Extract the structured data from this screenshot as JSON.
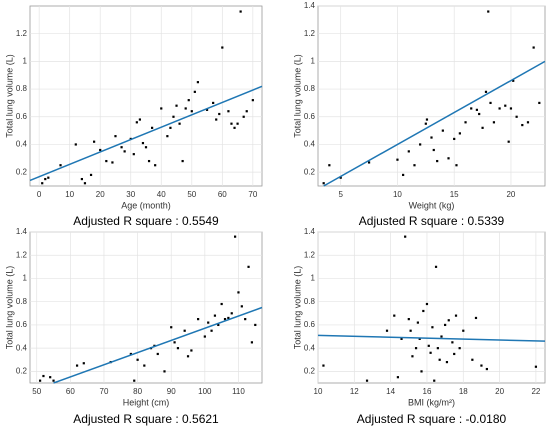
{
  "chart_data": [
    {
      "type": "scatter",
      "x_label": "Age (month)",
      "y_label": "Total lung volume (L)",
      "caption": "Adjusted R square : 0.5549",
      "color": "#000000",
      "x": [
        1,
        2,
        3,
        7,
        12,
        14,
        15,
        17,
        18,
        20,
        22,
        24,
        25,
        27,
        28,
        30,
        31,
        32,
        33,
        34,
        35,
        36,
        37,
        38,
        40,
        42,
        43,
        44,
        45,
        46,
        47,
        48,
        49,
        50,
        51,
        52,
        55,
        57,
        58,
        59,
        60,
        62,
        63,
        64,
        65,
        66,
        67,
        68,
        70
      ],
      "y": [
        0.12,
        0.15,
        0.16,
        0.25,
        0.4,
        0.15,
        0.12,
        0.18,
        0.42,
        0.36,
        0.28,
        0.27,
        0.46,
        0.38,
        0.35,
        0.44,
        0.33,
        0.56,
        0.58,
        0.41,
        0.38,
        0.28,
        0.52,
        0.25,
        0.66,
        0.46,
        0.52,
        0.6,
        0.68,
        0.55,
        0.28,
        0.66,
        0.72,
        0.64,
        0.78,
        0.85,
        0.65,
        0.7,
        0.58,
        0.62,
        1.1,
        0.64,
        0.55,
        0.52,
        0.55,
        1.36,
        0.6,
        0.64,
        0.72
      ],
      "trend": {
        "x": [
          -3,
          73
        ],
        "y": [
          0.14,
          0.82
        ],
        "color": "#1f77b4"
      },
      "xlim": [
        -3,
        73
      ],
      "ylim": [
        0.1,
        1.4
      ],
      "xticks": [
        0,
        10,
        20,
        30,
        40,
        50,
        60,
        70
      ],
      "yticks": [
        0.2,
        0.4,
        0.6,
        0.8,
        1,
        1.2
      ],
      "grid": true
    },
    {
      "type": "scatter",
      "x_label": "Weight (kg)",
      "y_label": "Total lung volume (L)",
      "caption": "Adjusted R square : 0.5339",
      "color": "#000000",
      "x": [
        3.5,
        4,
        5,
        7.5,
        10,
        10.5,
        11,
        11.5,
        12,
        12.5,
        12.6,
        13,
        13.2,
        13.5,
        14,
        14.5,
        15,
        15.2,
        15.5,
        16,
        16.5,
        17,
        17.2,
        17.5,
        17.8,
        18,
        18.2,
        18.5,
        19,
        19.5,
        19.8,
        20,
        20.2,
        20.5,
        21,
        21.5,
        22,
        22.5
      ],
      "y": [
        0.12,
        0.25,
        0.16,
        0.27,
        0.29,
        0.18,
        0.35,
        0.25,
        0.4,
        0.55,
        0.58,
        0.45,
        0.36,
        0.28,
        0.5,
        0.3,
        0.44,
        0.25,
        0.48,
        0.56,
        0.66,
        0.65,
        0.62,
        0.52,
        0.78,
        1.36,
        0.7,
        0.56,
        0.66,
        0.68,
        0.42,
        0.66,
        0.86,
        0.6,
        0.54,
        0.56,
        1.1,
        0.7
      ],
      "trend": {
        "x": [
          3.5,
          23
        ],
        "y": [
          0.1,
          1.0
        ],
        "color": "#1f77b4"
      },
      "xlim": [
        3,
        23
      ],
      "ylim": [
        0.1,
        1.4
      ],
      "xticks": [
        5,
        10,
        15,
        20
      ],
      "yticks": [
        0.2,
        0.4,
        0.6,
        0.8,
        1,
        1.2,
        1.4
      ],
      "grid": true
    },
    {
      "type": "scatter",
      "x_label": "Height (cm)",
      "y_label": "Total lung volume (L)",
      "caption": "Adjusted R square : 0.5621",
      "color": "#000000",
      "x": [
        51,
        52,
        54,
        55,
        62,
        64,
        72,
        78,
        79,
        80,
        82,
        84,
        85,
        86,
        88,
        90,
        91,
        92,
        94,
        95,
        96,
        98,
        100,
        101,
        102,
        103,
        104,
        105,
        106,
        107,
        108,
        109,
        110,
        111,
        112,
        113,
        114,
        115
      ],
      "y": [
        0.12,
        0.16,
        0.15,
        0.12,
        0.25,
        0.27,
        0.28,
        0.35,
        0.12,
        0.3,
        0.25,
        0.4,
        0.42,
        0.35,
        0.2,
        0.58,
        0.45,
        0.4,
        0.55,
        0.33,
        0.38,
        0.65,
        0.5,
        0.62,
        0.55,
        0.68,
        0.6,
        0.78,
        0.65,
        0.66,
        0.7,
        1.36,
        0.88,
        0.76,
        0.65,
        1.1,
        0.45,
        0.6
      ],
      "trend": {
        "x": [
          55,
          117
        ],
        "y": [
          0.1,
          0.75
        ],
        "color": "#1f77b4"
      },
      "xlim": [
        48,
        117
      ],
      "ylim": [
        0.1,
        1.4
      ],
      "xticks": [
        50,
        60,
        70,
        80,
        90,
        100,
        110
      ],
      "yticks": [
        0.2,
        0.4,
        0.6,
        0.8,
        1,
        1.2,
        1.4
      ],
      "grid": true
    },
    {
      "type": "scatter",
      "x_label": "BMI (kg/m²)",
      "y_label": "Total lung volume (L)",
      "caption": "Adjusted R square : -0.0180",
      "color": "#000000",
      "x": [
        10.3,
        12.7,
        13.8,
        14.2,
        14.4,
        14.6,
        14.8,
        15,
        15.1,
        15.2,
        15.4,
        15.5,
        15.6,
        15.7,
        15.8,
        16,
        16.1,
        16.2,
        16.3,
        16.4,
        16.5,
        16.6,
        16.7,
        16.8,
        17,
        17.1,
        17.2,
        17.4,
        17.5,
        17.6,
        17.8,
        18,
        18.5,
        18.7,
        19,
        19.3,
        22
      ],
      "y": [
        0.25,
        0.12,
        0.55,
        0.68,
        0.15,
        0.48,
        1.36,
        0.65,
        0.55,
        0.33,
        0.4,
        0.62,
        0.48,
        0.2,
        0.72,
        0.78,
        0.42,
        0.36,
        0.58,
        0.12,
        1.1,
        0.4,
        0.3,
        0.5,
        0.6,
        0.28,
        0.64,
        0.45,
        0.35,
        0.68,
        0.4,
        0.55,
        0.3,
        0.66,
        0.25,
        0.22,
        0.24
      ],
      "trend": {
        "x": [
          10,
          22.5
        ],
        "y": [
          0.51,
          0.46
        ],
        "color": "#1f77b4"
      },
      "xlim": [
        10,
        22.5
      ],
      "ylim": [
        0.1,
        1.4
      ],
      "xticks": [
        10,
        12,
        14,
        16,
        18,
        20,
        22
      ],
      "yticks": [
        0.2,
        0.4,
        0.6,
        0.8,
        1,
        1.2,
        1.4
      ],
      "grid": true
    }
  ]
}
